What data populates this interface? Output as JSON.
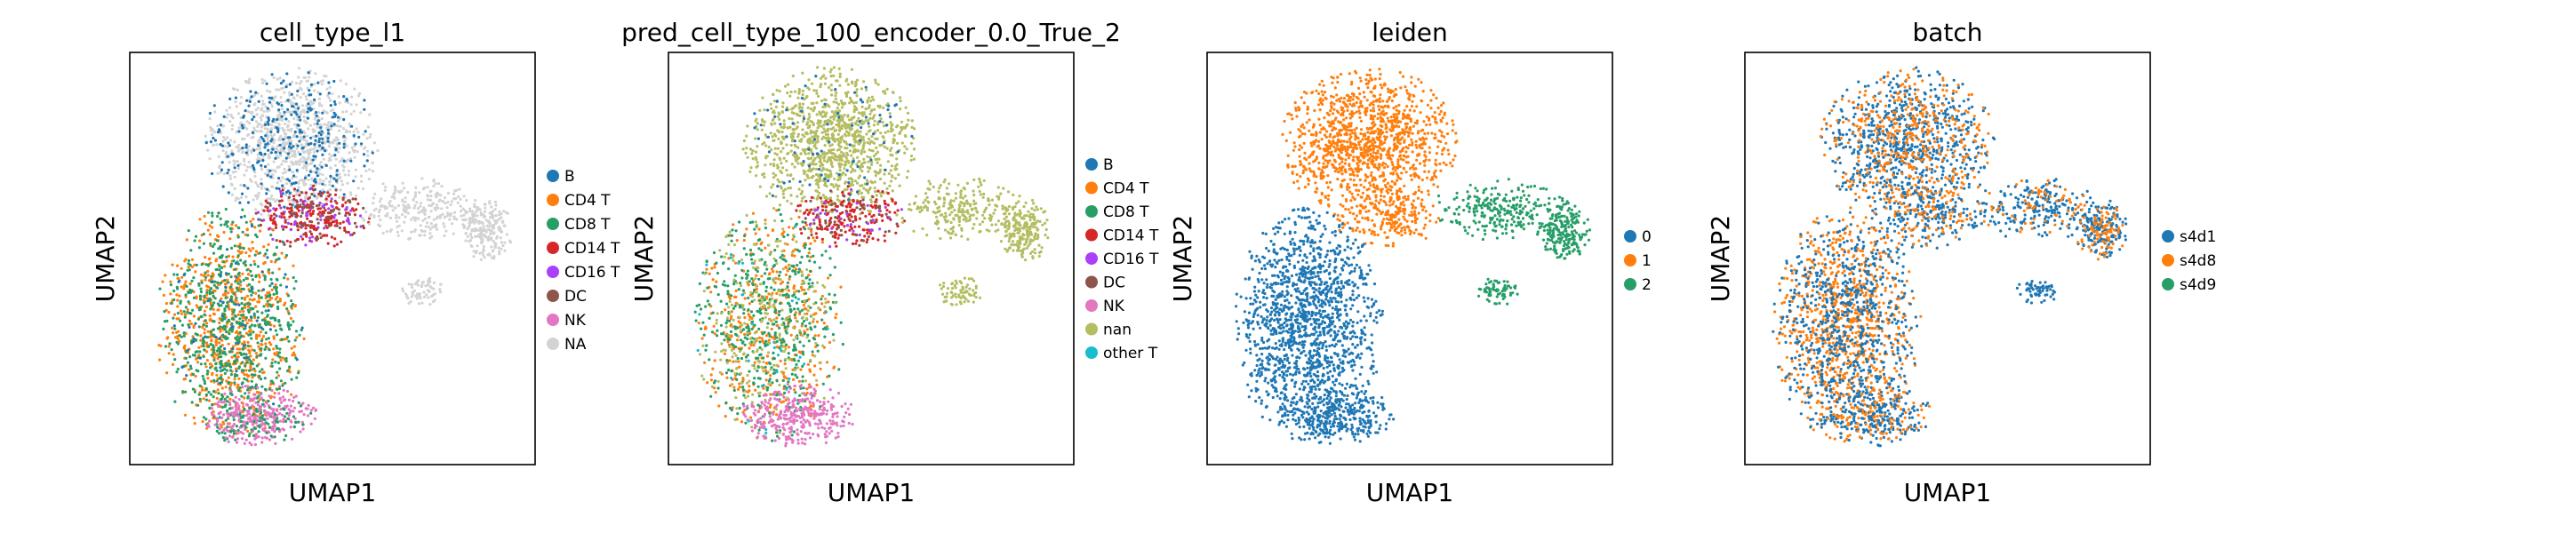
{
  "figure": {
    "panels": [
      {
        "title": "cell_type_l1",
        "xlabel": "UMAP1",
        "ylabel": "UMAP2",
        "legend": [
          "B",
          "CD4 T",
          "CD8 T",
          "CD14 T",
          "CD16 T",
          "DC",
          "NK",
          "NA"
        ],
        "colors": [
          "#1f77b4",
          "#ff7f0e",
          "#279e68",
          "#d62728",
          "#aa40fc",
          "#8c564b",
          "#e377c2",
          "#d3d3d3"
        ]
      },
      {
        "title": "pred_cell_type_100_encoder_0.0_True_2",
        "xlabel": "UMAP1",
        "ylabel": "UMAP2",
        "legend": [
          "B",
          "CD4 T",
          "CD8 T",
          "CD14 T",
          "CD16 T",
          "DC",
          "NK",
          "nan",
          "other T"
        ],
        "colors": [
          "#1f77b4",
          "#ff7f0e",
          "#279e68",
          "#d62728",
          "#aa40fc",
          "#8c564b",
          "#e377c2",
          "#b5bd61",
          "#17becf"
        ]
      },
      {
        "title": "leiden",
        "xlabel": "UMAP1",
        "ylabel": "UMAP2",
        "legend": [
          "0",
          "1",
          "2"
        ],
        "colors": [
          "#1f77b4",
          "#ff7f0e",
          "#279e68"
        ]
      },
      {
        "title": "batch",
        "xlabel": "UMAP1",
        "ylabel": "UMAP2",
        "legend": [
          "s4d1",
          "s4d8",
          "s4d9"
        ],
        "colors": [
          "#1f77b4",
          "#ff7f0e",
          "#279e68"
        ]
      }
    ]
  },
  "chart_data": [
    {
      "type": "scatter",
      "title": "cell_type_l1",
      "xlabel": "UMAP1",
      "ylabel": "UMAP2",
      "xticks": "none",
      "yticks": "none",
      "grid": false,
      "legend_position": "right",
      "series": [
        {
          "name": "B",
          "color": "#1f77b4",
          "region": "upper-left cluster"
        },
        {
          "name": "CD4 T",
          "color": "#ff7f0e",
          "region": "lower-left cluster"
        },
        {
          "name": "CD8 T",
          "color": "#279e68",
          "region": "lower-left cluster"
        },
        {
          "name": "CD14 T",
          "color": "#d62728",
          "region": "center bridge"
        },
        {
          "name": "CD16 T",
          "color": "#aa40fc",
          "region": "center bridge"
        },
        {
          "name": "DC",
          "color": "#8c564b",
          "region": "upper center"
        },
        {
          "name": "NK",
          "color": "#e377c2",
          "region": "bottom"
        },
        {
          "name": "NA",
          "color": "#d3d3d3",
          "region": "top and right arm"
        }
      ]
    },
    {
      "type": "scatter",
      "title": "pred_cell_type_100_encoder_0.0_True_2",
      "xlabel": "UMAP1",
      "ylabel": "UMAP2",
      "xticks": "none",
      "yticks": "none",
      "grid": false,
      "legend_position": "right",
      "series": [
        {
          "name": "B",
          "color": "#1f77b4"
        },
        {
          "name": "CD4 T",
          "color": "#ff7f0e"
        },
        {
          "name": "CD8 T",
          "color": "#279e68"
        },
        {
          "name": "CD14 T",
          "color": "#d62728"
        },
        {
          "name": "CD16 T",
          "color": "#aa40fc"
        },
        {
          "name": "DC",
          "color": "#8c564b"
        },
        {
          "name": "NK",
          "color": "#e377c2"
        },
        {
          "name": "nan",
          "color": "#b5bd61"
        },
        {
          "name": "other T",
          "color": "#17becf"
        }
      ]
    },
    {
      "type": "scatter",
      "title": "leiden",
      "xlabel": "UMAP1",
      "ylabel": "UMAP2",
      "xticks": "none",
      "yticks": "none",
      "grid": false,
      "legend_position": "right",
      "series": [
        {
          "name": "0",
          "color": "#1f77b4",
          "region": "lower-left cluster"
        },
        {
          "name": "1",
          "color": "#ff7f0e",
          "region": "upper cluster"
        },
        {
          "name": "2",
          "color": "#279e68",
          "region": "right arm"
        }
      ]
    },
    {
      "type": "scatter",
      "title": "batch",
      "xlabel": "UMAP1",
      "ylabel": "UMAP2",
      "xticks": "none",
      "yticks": "none",
      "grid": false,
      "legend_position": "right",
      "series": [
        {
          "name": "s4d1",
          "color": "#1f77b4"
        },
        {
          "name": "s4d8",
          "color": "#ff7f0e"
        },
        {
          "name": "s4d9",
          "color": "#279e68"
        }
      ]
    }
  ]
}
